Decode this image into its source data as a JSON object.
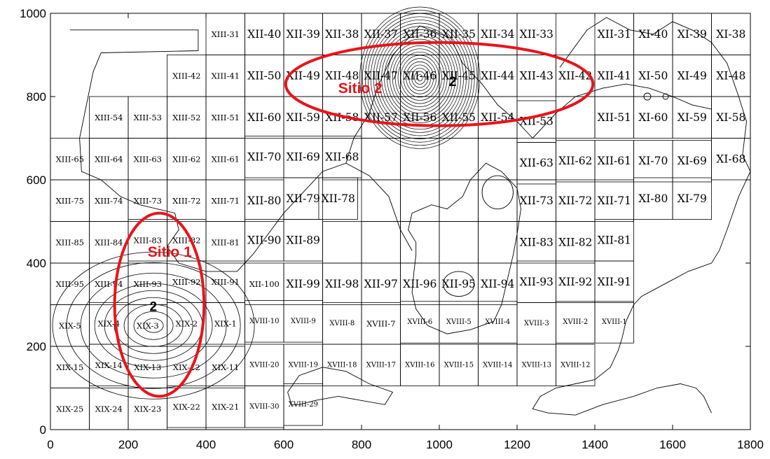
{
  "chart_data": {
    "type": "map",
    "xlim": [
      0,
      1800
    ],
    "ylim": [
      0,
      1000
    ],
    "x_ticks": [
      0,
      200,
      400,
      600,
      800,
      1000,
      1200,
      1400,
      1600,
      1800
    ],
    "y_ticks": [
      0,
      200,
      400,
      600,
      800,
      1000
    ],
    "grid_cell_size": 100,
    "cells": [
      {
        "label": "XIII-31",
        "x": 450,
        "y": 950,
        "s": "sm"
      },
      {
        "label": "XII-40",
        "x": 550,
        "y": 950
      },
      {
        "label": "XII-39",
        "x": 650,
        "y": 950
      },
      {
        "label": "XII-38",
        "x": 750,
        "y": 950
      },
      {
        "label": "XII-37",
        "x": 850,
        "y": 950
      },
      {
        "label": "XII-36",
        "x": 950,
        "y": 950
      },
      {
        "label": "XII-35",
        "x": 1050,
        "y": 950
      },
      {
        "label": "XII-34",
        "x": 1150,
        "y": 950
      },
      {
        "label": "XII-33",
        "x": 1250,
        "y": 950
      },
      {
        "label": "XII-31",
        "x": 1450,
        "y": 950
      },
      {
        "label": "XI-40",
        "x": 1550,
        "y": 950
      },
      {
        "label": "XI-39",
        "x": 1650,
        "y": 950
      },
      {
        "label": "XI-38",
        "x": 1750,
        "y": 950
      },
      {
        "label": "XIII-42",
        "x": 350,
        "y": 850,
        "s": "sm"
      },
      {
        "label": "XIII-41",
        "x": 450,
        "y": 850,
        "s": "sm"
      },
      {
        "label": "XII-50",
        "x": 550,
        "y": 850
      },
      {
        "label": "XII-49",
        "x": 650,
        "y": 850
      },
      {
        "label": "XII-48",
        "x": 750,
        "y": 850
      },
      {
        "label": "XII-47",
        "x": 850,
        "y": 850
      },
      {
        "label": "XII-46",
        "x": 950,
        "y": 850
      },
      {
        "label": "XII-45",
        "x": 1050,
        "y": 850
      },
      {
        "label": "XII-44",
        "x": 1150,
        "y": 850
      },
      {
        "label": "XII-43",
        "x": 1250,
        "y": 850
      },
      {
        "label": "XII-42",
        "x": 1350,
        "y": 850
      },
      {
        "label": "XII-41",
        "x": 1450,
        "y": 850
      },
      {
        "label": "XI-50",
        "x": 1550,
        "y": 850
      },
      {
        "label": "XI-49",
        "x": 1650,
        "y": 850
      },
      {
        "label": "XI-48",
        "x": 1750,
        "y": 850
      },
      {
        "label": "XIII-54",
        "x": 150,
        "y": 750,
        "s": "sm"
      },
      {
        "label": "XIII-53",
        "x": 250,
        "y": 750,
        "s": "sm"
      },
      {
        "label": "XIII-52",
        "x": 350,
        "y": 750,
        "s": "sm"
      },
      {
        "label": "XIII-51",
        "x": 450,
        "y": 750,
        "s": "sm"
      },
      {
        "label": "XII-60",
        "x": 550,
        "y": 750
      },
      {
        "label": "XII-59",
        "x": 650,
        "y": 750
      },
      {
        "label": "XII-58",
        "x": 750,
        "y": 750
      },
      {
        "label": "XII-57",
        "x": 850,
        "y": 750
      },
      {
        "label": "XII-56",
        "x": 950,
        "y": 750
      },
      {
        "label": "XII-55",
        "x": 1050,
        "y": 750
      },
      {
        "label": "XII-54",
        "x": 1150,
        "y": 750
      },
      {
        "label": "XII-53",
        "x": 1250,
        "y": 740
      },
      {
        "label": "XII-51",
        "x": 1450,
        "y": 750
      },
      {
        "label": "XI-60",
        "x": 1550,
        "y": 750
      },
      {
        "label": "XI-59",
        "x": 1650,
        "y": 750
      },
      {
        "label": "XI-58",
        "x": 1750,
        "y": 750
      },
      {
        "label": "XIII-65",
        "x": 50,
        "y": 650,
        "s": "sm"
      },
      {
        "label": "XIII-64",
        "x": 150,
        "y": 650,
        "s": "sm"
      },
      {
        "label": "XIII-63",
        "x": 250,
        "y": 650,
        "s": "sm"
      },
      {
        "label": "XIII-62",
        "x": 350,
        "y": 650,
        "s": "sm"
      },
      {
        "label": "XIII-61",
        "x": 450,
        "y": 650,
        "s": "sm"
      },
      {
        "label": "XII-70",
        "x": 550,
        "y": 655
      },
      {
        "label": "XII-69",
        "x": 650,
        "y": 655
      },
      {
        "label": "XII-68",
        "x": 750,
        "y": 655
      },
      {
        "label": "XII-63",
        "x": 1250,
        "y": 640
      },
      {
        "label": "XII-62",
        "x": 1350,
        "y": 645
      },
      {
        "label": "XII-61",
        "x": 1450,
        "y": 645
      },
      {
        "label": "XI-70",
        "x": 1550,
        "y": 645
      },
      {
        "label": "XI-69",
        "x": 1650,
        "y": 645
      },
      {
        "label": "XI-68",
        "x": 1750,
        "y": 650
      },
      {
        "label": "XIII-75",
        "x": 50,
        "y": 550,
        "s": "sm"
      },
      {
        "label": "XIII-74",
        "x": 150,
        "y": 550,
        "s": "sm"
      },
      {
        "label": "XIII-73",
        "x": 250,
        "y": 550,
        "s": "sm"
      },
      {
        "label": "XIII-72",
        "x": 350,
        "y": 550,
        "s": "sm"
      },
      {
        "label": "XIII-71",
        "x": 450,
        "y": 550,
        "s": "sm"
      },
      {
        "label": "XII-80",
        "x": 550,
        "y": 550
      },
      {
        "label": "XII-79",
        "x": 650,
        "y": 555
      },
      {
        "label": "XII-78",
        "x": 740,
        "y": 555
      },
      {
        "label": "XII-73",
        "x": 1250,
        "y": 550
      },
      {
        "label": "XII-72",
        "x": 1350,
        "y": 550
      },
      {
        "label": "XII-71",
        "x": 1450,
        "y": 550
      },
      {
        "label": "XI-80",
        "x": 1550,
        "y": 555
      },
      {
        "label": "XI-79",
        "x": 1650,
        "y": 555
      },
      {
        "label": "XIII-85",
        "x": 50,
        "y": 450,
        "s": "sm"
      },
      {
        "label": "XIII-84",
        "x": 150,
        "y": 450,
        "s": "sm"
      },
      {
        "label": "XIII-83",
        "x": 250,
        "y": 455,
        "s": "sm"
      },
      {
        "label": "XIII-82",
        "x": 350,
        "y": 455,
        "s": "sm"
      },
      {
        "label": "XIII-81",
        "x": 450,
        "y": 450,
        "s": "sm"
      },
      {
        "label": "XII-90",
        "x": 550,
        "y": 455
      },
      {
        "label": "XII-89",
        "x": 650,
        "y": 455
      },
      {
        "label": "XII-83",
        "x": 1250,
        "y": 450
      },
      {
        "label": "XII-82",
        "x": 1350,
        "y": 450
      },
      {
        "label": "XII-81",
        "x": 1450,
        "y": 455
      },
      {
        "label": "XIII-95",
        "x": 50,
        "y": 350,
        "s": "sm"
      },
      {
        "label": "XIII-94",
        "x": 150,
        "y": 350,
        "s": "sm"
      },
      {
        "label": "XIII-93",
        "x": 250,
        "y": 350,
        "s": "sm"
      },
      {
        "label": "XIII-92",
        "x": 350,
        "y": 355,
        "s": "sm"
      },
      {
        "label": "XIII-91",
        "x": 450,
        "y": 355,
        "s": "sm"
      },
      {
        "label": "XII-100",
        "x": 550,
        "y": 350,
        "s": "sm"
      },
      {
        "label": "XII-99",
        "x": 650,
        "y": 350
      },
      {
        "label": "XII-98",
        "x": 750,
        "y": 350
      },
      {
        "label": "XII-97",
        "x": 850,
        "y": 350
      },
      {
        "label": "XII-96",
        "x": 950,
        "y": 350
      },
      {
        "label": "XII-95",
        "x": 1050,
        "y": 350
      },
      {
        "label": "XII-94",
        "x": 1150,
        "y": 350
      },
      {
        "label": "XII-93",
        "x": 1250,
        "y": 355
      },
      {
        "label": "XII-92",
        "x": 1350,
        "y": 355
      },
      {
        "label": "XII-91",
        "x": 1450,
        "y": 355
      },
      {
        "label": "XIX-5",
        "x": 50,
        "y": 250,
        "s": "sm"
      },
      {
        "label": "XIX-4",
        "x": 150,
        "y": 255,
        "s": "sm"
      },
      {
        "label": "XIX-3",
        "x": 250,
        "y": 250,
        "s": "sm"
      },
      {
        "label": "XIX-2",
        "x": 350,
        "y": 255,
        "s": "sm"
      },
      {
        "label": "XIX-1",
        "x": 450,
        "y": 255,
        "s": "sm"
      },
      {
        "label": "XVIII-10",
        "x": 550,
        "y": 260,
        "s": "xs"
      },
      {
        "label": "XVIII-9",
        "x": 650,
        "y": 260,
        "s": "xs"
      },
      {
        "label": "XVIII-8",
        "x": 750,
        "y": 255,
        "s": "xs"
      },
      {
        "label": "XVIII-7",
        "x": 850,
        "y": 255,
        "s": "sm"
      },
      {
        "label": "XVIII-6",
        "x": 950,
        "y": 258,
        "s": "xs"
      },
      {
        "label": "XVIII-5",
        "x": 1050,
        "y": 258,
        "s": "xs"
      },
      {
        "label": "XVIII-4",
        "x": 1150,
        "y": 258,
        "s": "xs"
      },
      {
        "label": "XVIII-3",
        "x": 1250,
        "y": 255,
        "s": "xs"
      },
      {
        "label": "XVIII-2",
        "x": 1350,
        "y": 258,
        "s": "xs"
      },
      {
        "label": "XVIII-1",
        "x": 1450,
        "y": 258,
        "s": "xs"
      },
      {
        "label": "XIX-15",
        "x": 50,
        "y": 150,
        "s": "sm"
      },
      {
        "label": "XIX-14",
        "x": 150,
        "y": 155,
        "s": "sm"
      },
      {
        "label": "XIX-13",
        "x": 250,
        "y": 150,
        "s": "sm"
      },
      {
        "label": "XIX-12",
        "x": 350,
        "y": 150,
        "s": "sm"
      },
      {
        "label": "XIX-11",
        "x": 450,
        "y": 150,
        "s": "sm"
      },
      {
        "label": "XVIII-20",
        "x": 550,
        "y": 155,
        "s": "xs"
      },
      {
        "label": "XVIII-19",
        "x": 650,
        "y": 155,
        "s": "xs"
      },
      {
        "label": "XVIII-18",
        "x": 750,
        "y": 155,
        "s": "xs"
      },
      {
        "label": "XVIII-17",
        "x": 850,
        "y": 155,
        "s": "xs"
      },
      {
        "label": "XVIII-16",
        "x": 950,
        "y": 155,
        "s": "xs"
      },
      {
        "label": "XVIII-15",
        "x": 1050,
        "y": 155,
        "s": "xs"
      },
      {
        "label": "XVIII-14",
        "x": 1150,
        "y": 155,
        "s": "xs"
      },
      {
        "label": "XVIII-13",
        "x": 1250,
        "y": 155,
        "s": "xs"
      },
      {
        "label": "XVIII-12",
        "x": 1350,
        "y": 155,
        "s": "xs"
      },
      {
        "label": "XIX-25",
        "x": 50,
        "y": 50,
        "s": "sm"
      },
      {
        "label": "XIX-24",
        "x": 150,
        "y": 50,
        "s": "sm"
      },
      {
        "label": "XIX-23",
        "x": 250,
        "y": 50,
        "s": "sm"
      },
      {
        "label": "XIX-22",
        "x": 350,
        "y": 55,
        "s": "sm"
      },
      {
        "label": "XIX-21",
        "x": 450,
        "y": 55,
        "s": "sm"
      },
      {
        "label": "XVIII-30",
        "x": 550,
        "y": 55,
        "s": "xs"
      },
      {
        "label": "XVIII-29",
        "x": 650,
        "y": 60,
        "s": "xs"
      }
    ],
    "sites": [
      {
        "label": "Sitio 1",
        "color": "#e8141b",
        "ellipse": {
          "cx": 280,
          "cy": 300,
          "rx": 115,
          "ry": 220
        },
        "label_at": [
          250,
          415
        ]
      },
      {
        "label": "Sitio 2",
        "color": "#e8141b",
        "ellipse": {
          "cx": 1000,
          "cy": 830,
          "rx": 395,
          "ry": 100
        },
        "label_at": [
          740,
          808
        ]
      }
    ],
    "peaks": [
      {
        "label": "2",
        "x": 255,
        "y": 285
      },
      {
        "label": "2",
        "x": 1025,
        "y": 825
      }
    ]
  }
}
